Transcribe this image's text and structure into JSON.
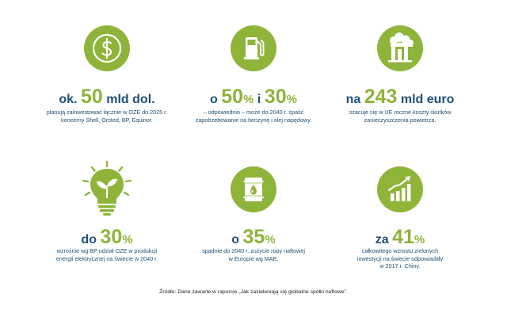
{
  "colors": {
    "accent_green": "#8fb43a",
    "navy": "#1f4f77"
  },
  "items": [
    {
      "icon": "dollar-coin-icon",
      "prefix": "ok.",
      "number": "50",
      "suffix": "mld dol.",
      "pct": "",
      "line1": "planują zainwestować łącznie w OZE do 2025 r.",
      "line2": "koncerny Shell, Orsted, BP, Equinor.",
      "line3": ""
    },
    {
      "icon": "fuel-pump-icon",
      "prefix": "o",
      "number": "50",
      "pct": "%",
      "mid": "i",
      "number2": "30",
      "pct2": "%",
      "line1": "– odpowiednio – może do 2040 r. spaść",
      "line2": "zapotrzebowanie na benzynę i olej napędowy.",
      "line3": ""
    },
    {
      "icon": "pollution-factory-icon",
      "prefix": "na",
      "number": "243",
      "suffix": "mld euro",
      "pct": "",
      "line1": "szacuje się w UE roczne koszty skutków",
      "line2": "zanieczyszczenia powietrza.",
      "line3": ""
    },
    {
      "icon": "lightbulb-plant-icon",
      "prefix": "do",
      "number": "30",
      "pct": "%",
      "suffix": "",
      "line1": "wzrośnie wg BP udział OZE w produkcji",
      "line2": "energii elektrycznej na świecie w 2040 r.",
      "line3": ""
    },
    {
      "icon": "oil-barrel-icon",
      "prefix": "o",
      "number": "35",
      "pct": "%",
      "suffix": "",
      "line1": "spadnie do 2040 r. zużycie ropy naftowej",
      "line2": "w Europie wg MAE.",
      "line3": ""
    },
    {
      "icon": "growth-chart-icon",
      "prefix": "za",
      "number": "41",
      "pct": "%",
      "suffix": "",
      "line1": "całkowitego wzrostu zielonych",
      "line2": "inwestycji na świecie odpowiadały",
      "line3": "w 2017 r. Chiny."
    }
  ],
  "source": "Źródło: Dane zawarte w raporcie „Jak zazieleniają się globalne spółki naftowe”."
}
